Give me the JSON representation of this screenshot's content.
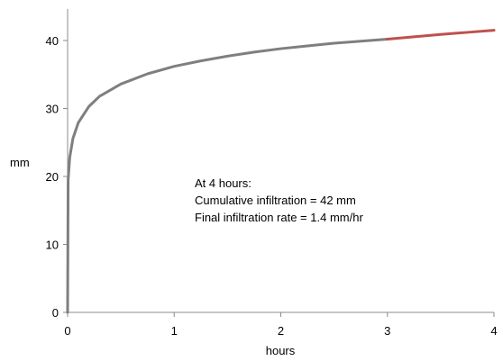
{
  "chart_data": {
    "type": "line",
    "title": "",
    "xlabel": "hours",
    "ylabel": "mm",
    "xlim": [
      0,
      4
    ],
    "ylim": [
      0,
      45
    ],
    "x_ticks": [
      0,
      1,
      2,
      3,
      4
    ],
    "y_ticks": [
      0,
      10,
      20,
      30,
      40
    ],
    "x_tick_labels": [
      "0",
      "1",
      "2",
      "3",
      "4"
    ],
    "y_tick_labels": [
      "0",
      "10",
      "20",
      "30",
      "40"
    ],
    "grid": false,
    "legend": "none",
    "annotations": [
      "At 4 hours:",
      "Cumulative infiltration =  42 mm",
      "Final infiltration rate = 1.4 mm/hr"
    ],
    "series": [
      {
        "color": "#7f7f7f",
        "x": [
          0,
          0.005,
          0.02,
          0.05,
          0.1,
          0.2,
          0.3,
          0.5,
          0.75,
          1.0,
          1.25,
          1.5,
          1.75,
          2.0,
          2.25,
          2.5,
          2.75,
          3.0
        ],
        "y": [
          0,
          19.5,
          22.8,
          25.6,
          27.9,
          30.3,
          31.8,
          33.6,
          35.1,
          36.2,
          37.0,
          37.7,
          38.3,
          38.8,
          39.2,
          39.6,
          39.9,
          40.2
        ]
      },
      {
        "color": "#c0504d",
        "x": [
          3.0,
          3.25,
          3.5,
          3.75,
          4.0
        ],
        "y": [
          40.2,
          40.55,
          40.9,
          41.2,
          41.5
        ]
      }
    ]
  }
}
